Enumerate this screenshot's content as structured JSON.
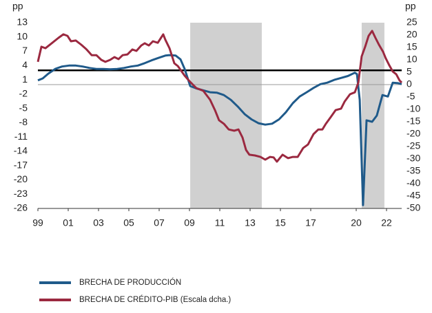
{
  "chart_data": {
    "type": "line",
    "y_label": "pp",
    "y2_label": "pp",
    "xlim": [
      1999,
      2023
    ],
    "xticks": [
      {
        "value": 1999,
        "label": "99"
      },
      {
        "value": 2001,
        "label": "01"
      },
      {
        "value": 2003,
        "label": "03"
      },
      {
        "value": 2005,
        "label": "05"
      },
      {
        "value": 2007,
        "label": "07"
      },
      {
        "value": 2009,
        "label": "09"
      },
      {
        "value": 2011,
        "label": "11"
      },
      {
        "value": 2013,
        "label": "13"
      },
      {
        "value": 2015,
        "label": "15"
      },
      {
        "value": 2017,
        "label": "17"
      },
      {
        "value": 2020,
        "label": "20"
      },
      {
        "value": 2022,
        "label": "22"
      }
    ],
    "ylim": [
      -26,
      13
    ],
    "yticks": [
      13,
      10,
      7,
      4,
      1,
      -2,
      -5,
      -8,
      -11,
      -14,
      -17,
      -20,
      -23,
      -26
    ],
    "y2lim": [
      -50,
      25
    ],
    "y2ticks": [
      25,
      20,
      15,
      10,
      5,
      0,
      -5,
      -10,
      -15,
      -20,
      -25,
      -30,
      -35,
      -40,
      -45,
      -50
    ],
    "shaded_ranges": [
      [
        2009.05,
        2013.77
      ],
      [
        2020.36,
        2021.86
      ]
    ],
    "shade_color": "#d0d0d0",
    "reference_lines": [
      {
        "axis": "y",
        "value": 3,
        "color": "#000000"
      },
      {
        "axis": "y2",
        "value": 0,
        "color": "#999999"
      }
    ],
    "series": [
      {
        "name": "BRECHA DE PRODUCCIÓN",
        "color": "#1f5a8a",
        "axis": "y",
        "x": [
          1999.0,
          1999.32,
          1999.68,
          2000.14,
          2000.59,
          2001.05,
          2001.5,
          2001.95,
          2002.41,
          2002.86,
          2003.32,
          2003.77,
          2004.23,
          2004.68,
          2005.14,
          2005.59,
          2006.05,
          2006.5,
          2006.95,
          2007.41,
          2007.68,
          2008.09,
          2008.41,
          2008.68,
          2009.05,
          2009.45,
          2009.91,
          2010.36,
          2010.82,
          2011.27,
          2011.73,
          2012.18,
          2012.64,
          2013.09,
          2013.55,
          2014.0,
          2014.45,
          2014.91,
          2015.36,
          2015.82,
          2016.27,
          2016.73,
          2017.18,
          2017.64,
          2018.09,
          2018.55,
          2019.0,
          2019.45,
          2019.91,
          2020.05,
          2020.23,
          2020.45,
          2020.68,
          2021.05,
          2021.36,
          2021.73,
          2022.09,
          2022.41,
          2022.77,
          2023.0
        ],
        "values": [
          0.9,
          1.3,
          2.3,
          3.3,
          3.8,
          4.0,
          4.0,
          3.8,
          3.5,
          3.3,
          3.3,
          3.2,
          3.3,
          3.5,
          3.8,
          4.0,
          4.5,
          5.1,
          5.6,
          6.1,
          6.2,
          6.1,
          5.3,
          3.3,
          -0.3,
          -0.8,
          -1.2,
          -1.6,
          -1.7,
          -2.2,
          -3.2,
          -4.6,
          -6.2,
          -7.3,
          -8.1,
          -8.4,
          -8.2,
          -7.3,
          -5.8,
          -3.9,
          -2.5,
          -1.6,
          -0.7,
          0.1,
          0.4,
          1.0,
          1.4,
          1.8,
          2.5,
          2.2,
          -3.2,
          -25.3,
          -7.5,
          -7.8,
          -6.5,
          -2.2,
          -2.5,
          0.4,
          0.3,
          0.1
        ]
      },
      {
        "name": "BRECHA DE CRÉDITO-PIB (Escala dcha.)",
        "color": "#9b2940",
        "axis": "y2",
        "x": [
          1999.0,
          1999.23,
          1999.5,
          1999.91,
          2000.36,
          2000.68,
          2000.95,
          2001.18,
          2001.5,
          2001.86,
          2002.18,
          2002.55,
          2002.86,
          2003.18,
          2003.45,
          2003.77,
          2004.05,
          2004.32,
          2004.59,
          2004.91,
          2005.23,
          2005.5,
          2005.82,
          2006.05,
          2006.32,
          2006.59,
          2006.91,
          2007.09,
          2007.27,
          2007.41,
          2007.68,
          2008.0,
          2008.23,
          2008.45,
          2008.68,
          2009.0,
          2009.45,
          2009.91,
          2010.36,
          2010.68,
          2010.95,
          2011.27,
          2011.59,
          2011.95,
          2012.23,
          2012.5,
          2012.73,
          2012.95,
          2013.32,
          2013.68,
          2014.0,
          2014.32,
          2014.55,
          2014.77,
          2015.14,
          2015.5,
          2015.82,
          2016.14,
          2016.5,
          2016.82,
          2017.18,
          2017.5,
          2017.77,
          2018.0,
          2018.32,
          2018.64,
          2019.0,
          2019.23,
          2019.59,
          2019.91,
          2020.14,
          2020.36,
          2020.59,
          2020.82,
          2021.05,
          2021.27,
          2021.5,
          2021.77,
          2021.95,
          2022.18,
          2022.41,
          2022.64,
          2022.86,
          2023.0
        ],
        "values": [
          9.2,
          15.3,
          14.7,
          16.7,
          18.9,
          20.3,
          19.7,
          17.5,
          17.8,
          16.1,
          14.4,
          11.9,
          11.9,
          10.0,
          9.2,
          10.0,
          11.1,
          10.3,
          11.9,
          12.2,
          14.2,
          13.6,
          15.8,
          16.7,
          15.8,
          17.5,
          16.9,
          18.6,
          20.3,
          18.1,
          14.7,
          8.6,
          7.5,
          5.6,
          3.6,
          1.4,
          -1.4,
          -2.5,
          -6.1,
          -10.3,
          -14.4,
          -15.8,
          -18.1,
          -18.6,
          -18.1,
          -21.4,
          -26.4,
          -28.3,
          -28.6,
          -29.2,
          -30.3,
          -29.2,
          -29.4,
          -31.1,
          -28.3,
          -29.7,
          -29.2,
          -29.2,
          -25.6,
          -24.2,
          -20.0,
          -18.1,
          -18.1,
          -15.8,
          -13.1,
          -10.3,
          -9.7,
          -6.9,
          -3.9,
          -3.1,
          0.8,
          11.4,
          15.3,
          19.7,
          21.7,
          18.9,
          16.1,
          13.3,
          10.6,
          7.8,
          5.3,
          4.2,
          1.7,
          0.8
        ]
      }
    ]
  }
}
